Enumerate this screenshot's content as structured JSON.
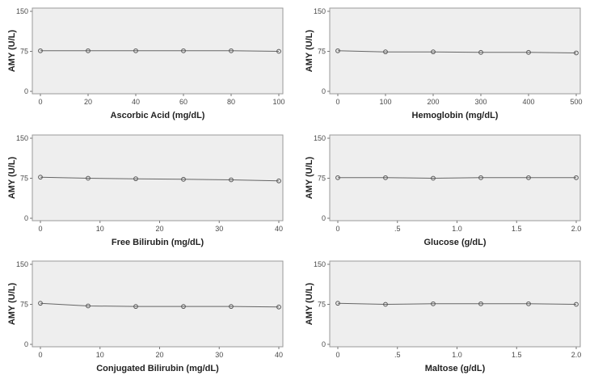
{
  "colors": {
    "plot_background": "#eeeeee",
    "plot_border": "#999999",
    "series_line": "#666666",
    "marker": "#555555"
  },
  "chart_data": [
    {
      "type": "line",
      "xlabel": "Ascorbic Acid (mg/dL)",
      "ylabel": "AMY (U/L)",
      "x": [
        0,
        20,
        40,
        60,
        80,
        100
      ],
      "y": [
        76,
        76,
        76,
        76,
        76,
        75
      ],
      "xlim": [
        0,
        100
      ],
      "ylim": [
        0,
        150
      ],
      "xticks": [
        "0",
        "20",
        "40",
        "60",
        "80",
        "100"
      ],
      "yticks": [
        "0",
        "75",
        "150"
      ],
      "grid": false
    },
    {
      "type": "line",
      "xlabel": "Hemoglobin (mg/dL)",
      "ylabel": "AMY (U/L)",
      "x": [
        0,
        100,
        200,
        300,
        400,
        500
      ],
      "y": [
        76,
        74,
        74,
        73,
        73,
        72
      ],
      "xlim": [
        0,
        500
      ],
      "ylim": [
        0,
        150
      ],
      "xticks": [
        "0",
        "100",
        "200",
        "300",
        "400",
        "500"
      ],
      "yticks": [
        "0",
        "75",
        "150"
      ],
      "grid": false
    },
    {
      "type": "line",
      "xlabel": "Free Bilirubin (mg/dL)",
      "ylabel": "AMY (U/L)",
      "x": [
        0,
        8,
        16,
        24,
        32,
        40
      ],
      "y": [
        77,
        75,
        74,
        73,
        72,
        70
      ],
      "xlim": [
        0,
        40
      ],
      "ylim": [
        0,
        150
      ],
      "xticks": [
        "0",
        "10",
        "20",
        "30",
        "40"
      ],
      "yticks": [
        "0",
        "75",
        "150"
      ],
      "grid": false
    },
    {
      "type": "line",
      "xlabel": "Glucose (g/dL)",
      "ylabel": "AMY (U/L)",
      "x": [
        0,
        0.4,
        0.8,
        1.2,
        1.6,
        2.0
      ],
      "y": [
        76,
        76,
        75,
        76,
        76,
        76
      ],
      "xlim": [
        0,
        2.0
      ],
      "ylim": [
        0,
        150
      ],
      "xticks": [
        "0",
        ".5",
        "1.0",
        "1.5",
        "2.0"
      ],
      "yticks": [
        "0",
        "75",
        "150"
      ],
      "grid": false
    },
    {
      "type": "line",
      "xlabel": "Conjugated Bilirubin (mg/dL)",
      "ylabel": "AMY (U/L)",
      "x": [
        0,
        8,
        16,
        24,
        32,
        40
      ],
      "y": [
        77,
        72,
        71,
        71,
        71,
        70
      ],
      "xlim": [
        0,
        40
      ],
      "ylim": [
        0,
        150
      ],
      "xticks": [
        "0",
        "10",
        "20",
        "30",
        "40"
      ],
      "yticks": [
        "0",
        "75",
        "150"
      ],
      "grid": false
    },
    {
      "type": "line",
      "xlabel": "Maltose (g/dL)",
      "ylabel": "AMY (U/L)",
      "x": [
        0,
        0.4,
        0.8,
        1.2,
        1.6,
        2.0
      ],
      "y": [
        77,
        75,
        76,
        76,
        76,
        75
      ],
      "xlim": [
        0,
        2.0
      ],
      "ylim": [
        0,
        150
      ],
      "xticks": [
        "0",
        ".5",
        "1.0",
        "1.5",
        "2.0"
      ],
      "yticks": [
        "0",
        "75",
        "150"
      ],
      "grid": false
    }
  ]
}
